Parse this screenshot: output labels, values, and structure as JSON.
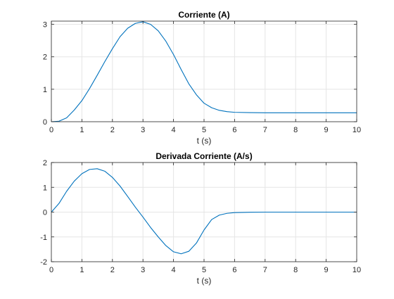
{
  "chart_data": [
    {
      "type": "line",
      "title": "Corriente (A)",
      "xlabel": "t (s)",
      "ylabel": "",
      "xlim": [
        0,
        10
      ],
      "ylim": [
        0,
        3.1
      ],
      "x_ticks": [
        "0",
        "1",
        "2",
        "3",
        "4",
        "5",
        "6",
        "7",
        "8",
        "9",
        "10"
      ],
      "y_ticks": [
        "0",
        "1",
        "2",
        "3"
      ],
      "grid": true,
      "line_color": "#0072bd",
      "x": [
        0,
        0.25,
        0.5,
        0.75,
        1,
        1.25,
        1.5,
        1.75,
        2,
        2.25,
        2.5,
        2.75,
        3,
        3.25,
        3.5,
        3.75,
        4,
        4.25,
        4.5,
        4.75,
        5,
        5.25,
        5.5,
        5.75,
        6,
        6.5,
        7,
        7.5,
        8,
        8.5,
        9,
        9.5,
        10
      ],
      "y": [
        0,
        0.015,
        0.12,
        0.36,
        0.65,
        1.02,
        1.43,
        1.85,
        2.25,
        2.62,
        2.88,
        3.03,
        3.08,
        3.0,
        2.8,
        2.48,
        2.07,
        1.61,
        1.17,
        0.83,
        0.57,
        0.43,
        0.35,
        0.31,
        0.29,
        0.28,
        0.275,
        0.275,
        0.275,
        0.275,
        0.275,
        0.275,
        0.275
      ]
    },
    {
      "type": "line",
      "title": "Derivada Corriente (A/s)",
      "xlabel": "t (s)",
      "ylabel": "",
      "xlim": [
        0,
        10
      ],
      "ylim": [
        -2,
        2
      ],
      "x_ticks": [
        "0",
        "1",
        "2",
        "3",
        "4",
        "5",
        "6",
        "7",
        "8",
        "9",
        "10"
      ],
      "y_ticks": [
        "-2",
        "-1",
        "0",
        "1",
        "2"
      ],
      "grid": true,
      "line_color": "#0072bd",
      "x": [
        0,
        0.25,
        0.5,
        0.75,
        1,
        1.25,
        1.5,
        1.75,
        2,
        2.25,
        2.5,
        2.75,
        3,
        3.25,
        3.5,
        3.75,
        4,
        4.25,
        4.5,
        4.75,
        5,
        5.25,
        5.5,
        5.75,
        6,
        6.5,
        7,
        7.5,
        8,
        8.5,
        9,
        9.5,
        10
      ],
      "y": [
        0,
        0.35,
        0.84,
        1.25,
        1.55,
        1.72,
        1.75,
        1.65,
        1.4,
        1.05,
        0.63,
        0.2,
        -0.2,
        -0.62,
        -1.0,
        -1.35,
        -1.6,
        -1.68,
        -1.58,
        -1.25,
        -0.72,
        -0.3,
        -0.12,
        -0.05,
        -0.02,
        -0.005,
        0,
        0,
        0,
        0,
        0,
        0,
        0
      ]
    }
  ]
}
